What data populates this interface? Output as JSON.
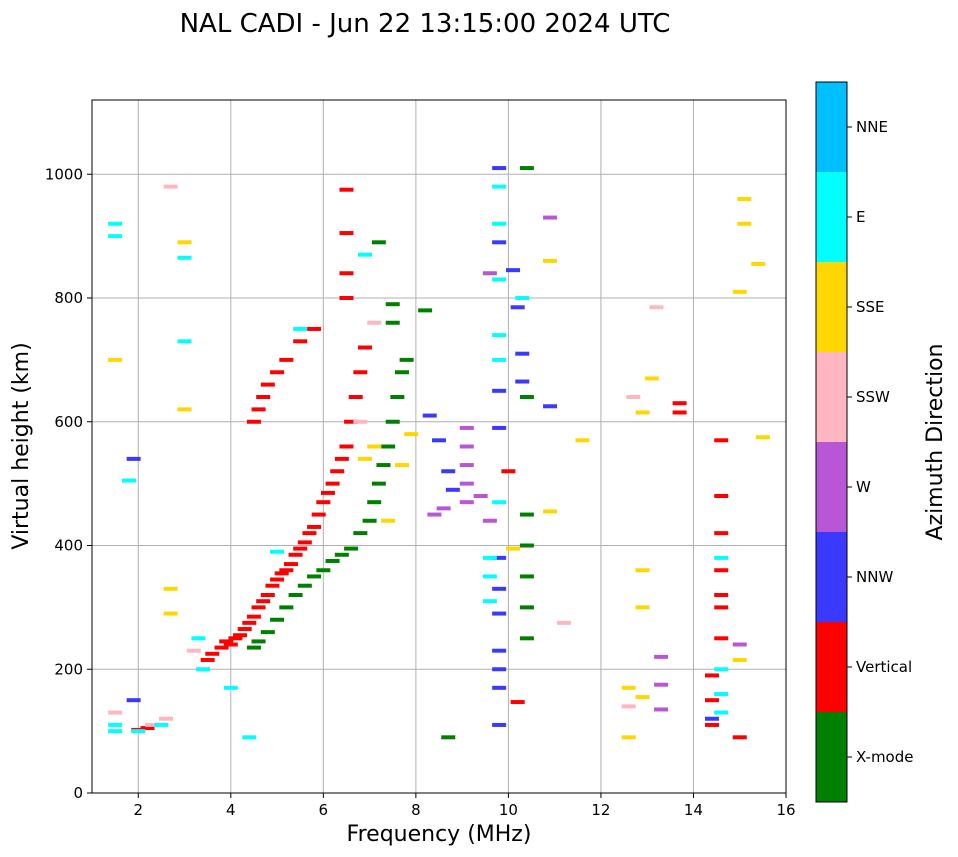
{
  "chart_data": {
    "type": "scatter",
    "title": "NAL CADI - Jun 22 13:15:00 2024 UTC",
    "xlabel": "Frequency (MHz)",
    "ylabel": "Virtual height (km)",
    "xlim": [
      1,
      16
    ],
    "ylim": [
      0,
      1120
    ],
    "xticks": [
      2,
      4,
      6,
      8,
      10,
      12,
      14,
      16
    ],
    "yticks": [
      0,
      200,
      400,
      600,
      800,
      1000
    ],
    "grid": true,
    "colorbar": {
      "title": "Azimuth Direction",
      "categories": [
        "X-mode",
        "Vertical",
        "NNW",
        "W",
        "SSW",
        "SSE",
        "E",
        "NNE"
      ],
      "colors": [
        "#008000",
        "#ff0000",
        "#3a3aff",
        "#b857d6",
        "#ffb6c1",
        "#ffd700",
        "#00ffff",
        "#00bfff"
      ]
    },
    "series": [
      {
        "name": "Vertical",
        "color": "#ff0000",
        "points": [
          [
            2.0,
            102
          ],
          [
            2.2,
            105
          ],
          [
            3.5,
            215
          ],
          [
            3.6,
            225
          ],
          [
            3.8,
            235
          ],
          [
            3.9,
            245
          ],
          [
            4.0,
            240
          ],
          [
            4.1,
            250
          ],
          [
            4.2,
            255
          ],
          [
            4.3,
            265
          ],
          [
            4.4,
            275
          ],
          [
            4.5,
            285
          ],
          [
            4.6,
            300
          ],
          [
            4.7,
            310
          ],
          [
            4.8,
            320
          ],
          [
            4.9,
            335
          ],
          [
            5.0,
            345
          ],
          [
            5.1,
            355
          ],
          [
            5.2,
            360
          ],
          [
            5.3,
            370
          ],
          [
            5.4,
            385
          ],
          [
            5.5,
            395
          ],
          [
            5.6,
            405
          ],
          [
            5.7,
            420
          ],
          [
            5.8,
            430
          ],
          [
            5.9,
            450
          ],
          [
            6.0,
            470
          ],
          [
            6.1,
            485
          ],
          [
            6.2,
            500
          ],
          [
            6.3,
            520
          ],
          [
            6.4,
            540
          ],
          [
            6.5,
            560
          ],
          [
            6.6,
            600
          ],
          [
            6.7,
            640
          ],
          [
            6.8,
            680
          ],
          [
            6.9,
            720
          ],
          [
            6.5,
            800
          ],
          [
            6.5,
            840
          ],
          [
            6.5,
            905
          ],
          [
            6.5,
            975
          ],
          [
            4.5,
            600
          ],
          [
            4.6,
            620
          ],
          [
            4.7,
            640
          ],
          [
            4.8,
            660
          ],
          [
            5.0,
            680
          ],
          [
            5.2,
            700
          ],
          [
            5.5,
            730
          ],
          [
            5.8,
            750
          ],
          [
            14.4,
            110
          ],
          [
            14.4,
            150
          ],
          [
            14.4,
            190
          ],
          [
            14.6,
            250
          ],
          [
            14.6,
            300
          ],
          [
            14.6,
            320
          ],
          [
            14.6,
            360
          ],
          [
            14.6,
            420
          ],
          [
            14.6,
            480
          ],
          [
            14.6,
            570
          ],
          [
            13.7,
            615
          ],
          [
            13.7,
            630
          ],
          [
            15.0,
            90
          ],
          [
            10.0,
            520
          ],
          [
            10.2,
            147
          ]
        ]
      },
      {
        "name": "X-mode",
        "color": "#008000",
        "points": [
          [
            4.5,
            235
          ],
          [
            4.6,
            245
          ],
          [
            4.8,
            260
          ],
          [
            5.0,
            280
          ],
          [
            5.2,
            300
          ],
          [
            5.4,
            320
          ],
          [
            5.6,
            335
          ],
          [
            5.8,
            350
          ],
          [
            6.0,
            360
          ],
          [
            6.2,
            375
          ],
          [
            6.4,
            385
          ],
          [
            6.6,
            395
          ],
          [
            6.8,
            420
          ],
          [
            7.0,
            440
          ],
          [
            7.1,
            470
          ],
          [
            7.2,
            500
          ],
          [
            7.3,
            530
          ],
          [
            7.4,
            560
          ],
          [
            7.5,
            600
          ],
          [
            7.6,
            640
          ],
          [
            7.7,
            680
          ],
          [
            7.8,
            700
          ],
          [
            7.5,
            760
          ],
          [
            7.5,
            790
          ],
          [
            7.2,
            890
          ],
          [
            8.2,
            780
          ],
          [
            8.7,
            90
          ],
          [
            10.4,
            250
          ],
          [
            10.4,
            300
          ],
          [
            10.4,
            350
          ],
          [
            10.4,
            400
          ],
          [
            10.4,
            450
          ],
          [
            10.4,
            640
          ],
          [
            10.4,
            1010
          ]
        ]
      },
      {
        "name": "NNW",
        "color": "#3a3aff",
        "points": [
          [
            1.9,
            150
          ],
          [
            1.9,
            540
          ],
          [
            8.3,
            610
          ],
          [
            8.5,
            570
          ],
          [
            8.7,
            520
          ],
          [
            8.8,
            490
          ],
          [
            9.8,
            110
          ],
          [
            9.8,
            170
          ],
          [
            9.8,
            200
          ],
          [
            9.8,
            230
          ],
          [
            9.8,
            290
          ],
          [
            9.8,
            330
          ],
          [
            9.8,
            380
          ],
          [
            9.8,
            590
          ],
          [
            9.8,
            650
          ],
          [
            9.8,
            890
          ],
          [
            9.8,
            1010
          ],
          [
            10.1,
            845
          ],
          [
            10.2,
            785
          ],
          [
            10.3,
            710
          ],
          [
            10.3,
            665
          ],
          [
            10.9,
            625
          ],
          [
            14.4,
            120
          ]
        ]
      },
      {
        "name": "W",
        "color": "#b857d6",
        "points": [
          [
            8.4,
            450
          ],
          [
            8.6,
            460
          ],
          [
            9.1,
            470
          ],
          [
            9.1,
            500
          ],
          [
            9.1,
            530
          ],
          [
            9.1,
            560
          ],
          [
            9.1,
            590
          ],
          [
            9.4,
            480
          ],
          [
            9.6,
            440
          ],
          [
            9.6,
            840
          ],
          [
            13.3,
            135
          ],
          [
            13.3,
            175
          ],
          [
            13.3,
            220
          ],
          [
            15.0,
            240
          ],
          [
            10.9,
            930
          ]
        ]
      },
      {
        "name": "SSW",
        "color": "#ffb6c1",
        "points": [
          [
            1.5,
            130
          ],
          [
            2.3,
            110
          ],
          [
            2.6,
            120
          ],
          [
            2.7,
            980
          ],
          [
            3.2,
            230
          ],
          [
            6.8,
            600
          ],
          [
            7.1,
            760
          ],
          [
            11.2,
            275
          ],
          [
            12.6,
            140
          ],
          [
            12.7,
            640
          ],
          [
            13.2,
            785
          ]
        ]
      },
      {
        "name": "SSE",
        "color": "#ffd700",
        "points": [
          [
            1.5,
            700
          ],
          [
            2.7,
            330
          ],
          [
            2.7,
            290
          ],
          [
            3.0,
            890
          ],
          [
            3.0,
            620
          ],
          [
            6.9,
            540
          ],
          [
            7.1,
            560
          ],
          [
            7.4,
            440
          ],
          [
            7.7,
            530
          ],
          [
            7.9,
            580
          ],
          [
            10.1,
            395
          ],
          [
            10.9,
            455
          ],
          [
            10.9,
            860
          ],
          [
            11.6,
            570
          ],
          [
            12.6,
            90
          ],
          [
            12.6,
            170
          ],
          [
            12.9,
            155
          ],
          [
            12.9,
            300
          ],
          [
            12.9,
            360
          ],
          [
            12.9,
            615
          ],
          [
            13.1,
            670
          ],
          [
            15.0,
            215
          ],
          [
            15.0,
            810
          ],
          [
            15.1,
            920
          ],
          [
            15.1,
            960
          ],
          [
            15.4,
            855
          ],
          [
            15.5,
            575
          ]
        ]
      },
      {
        "name": "E",
        "color": "#00ffff",
        "points": [
          [
            1.5,
            100
          ],
          [
            1.5,
            110
          ],
          [
            1.5,
            900
          ],
          [
            1.5,
            920
          ],
          [
            1.8,
            505
          ],
          [
            2.0,
            100
          ],
          [
            2.5,
            110
          ],
          [
            3.0,
            730
          ],
          [
            3.0,
            865
          ],
          [
            3.3,
            250
          ],
          [
            3.4,
            200
          ],
          [
            4.0,
            170
          ],
          [
            4.4,
            90
          ],
          [
            5.0,
            390
          ],
          [
            5.5,
            750
          ],
          [
            6.9,
            870
          ],
          [
            9.6,
            310
          ],
          [
            9.6,
            350
          ],
          [
            9.6,
            380
          ],
          [
            9.8,
            470
          ],
          [
            9.8,
            700
          ],
          [
            9.8,
            740
          ],
          [
            9.8,
            830
          ],
          [
            9.8,
            920
          ],
          [
            9.8,
            980
          ],
          [
            10.3,
            800
          ],
          [
            14.6,
            130
          ],
          [
            14.6,
            160
          ],
          [
            14.6,
            200
          ],
          [
            14.6,
            380
          ]
        ]
      }
    ]
  }
}
